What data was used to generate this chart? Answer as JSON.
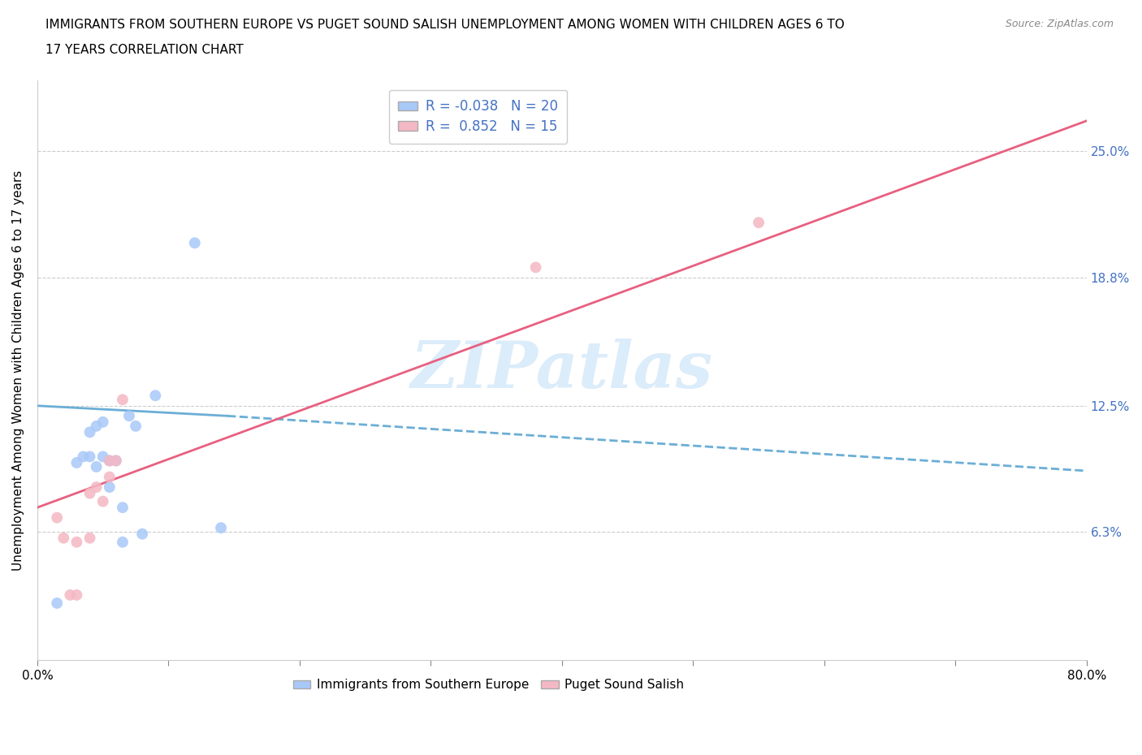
{
  "title_line1": "IMMIGRANTS FROM SOUTHERN EUROPE VS PUGET SOUND SALISH UNEMPLOYMENT AMONG WOMEN WITH CHILDREN AGES 6 TO",
  "title_line2": "17 YEARS CORRELATION CHART",
  "source": "Source: ZipAtlas.com",
  "ylabel": "Unemployment Among Women with Children Ages 6 to 17 years",
  "xmin": 0.0,
  "xmax": 0.8,
  "ymin": 0.0,
  "ymax": 0.285,
  "yticks": [
    0.063,
    0.125,
    0.188,
    0.25
  ],
  "ytick_labels": [
    "6.3%",
    "12.5%",
    "18.8%",
    "25.0%"
  ],
  "xticks": [
    0.0,
    0.1,
    0.2,
    0.3,
    0.4,
    0.5,
    0.6,
    0.7,
    0.8
  ],
  "xtick_labels": [
    "0.0%",
    "",
    "",
    "",
    "",
    "",
    "",
    "",
    "80.0%"
  ],
  "legend_r1_label": "R = ",
  "legend_r1_val": "-0.038",
  "legend_n1": "N = 20",
  "legend_r2_label": "R =  ",
  "legend_r2_val": "0.852",
  "legend_n2": "N = 15",
  "color_blue_scatter": "#a8c8f8",
  "color_pink_scatter": "#f4b8c4",
  "color_blue_line": "#6baed6",
  "color_pink_line": "#e86080",
  "watermark_color": "#cce4f8",
  "blue_scatter_x": [
    0.015,
    0.03,
    0.035,
    0.04,
    0.04,
    0.045,
    0.045,
    0.05,
    0.05,
    0.055,
    0.055,
    0.06,
    0.065,
    0.065,
    0.07,
    0.075,
    0.08,
    0.09,
    0.12,
    0.14
  ],
  "blue_scatter_y": [
    0.028,
    0.097,
    0.1,
    0.1,
    0.112,
    0.095,
    0.115,
    0.1,
    0.117,
    0.085,
    0.098,
    0.098,
    0.058,
    0.075,
    0.12,
    0.115,
    0.062,
    0.13,
    0.205,
    0.065
  ],
  "pink_scatter_x": [
    0.015,
    0.02,
    0.025,
    0.03,
    0.03,
    0.04,
    0.04,
    0.045,
    0.05,
    0.055,
    0.055,
    0.06,
    0.065,
    0.38,
    0.55
  ],
  "pink_scatter_y": [
    0.07,
    0.06,
    0.032,
    0.032,
    0.058,
    0.06,
    0.082,
    0.085,
    0.078,
    0.09,
    0.098,
    0.098,
    0.128,
    0.193,
    0.215
  ],
  "blue_line_x": [
    0.0,
    0.145,
    0.8
  ],
  "blue_line_y": [
    0.125,
    0.12,
    0.093
  ],
  "blue_line_styles": [
    "solid",
    "dashed"
  ],
  "pink_line_x": [
    0.0,
    0.8
  ],
  "pink_line_y": [
    0.075,
    0.265
  ],
  "background": "#ffffff",
  "grid_color": "#cccccc",
  "legend_cat1": "Immigrants from Southern Europe",
  "legend_cat2": "Puget Sound Salish"
}
